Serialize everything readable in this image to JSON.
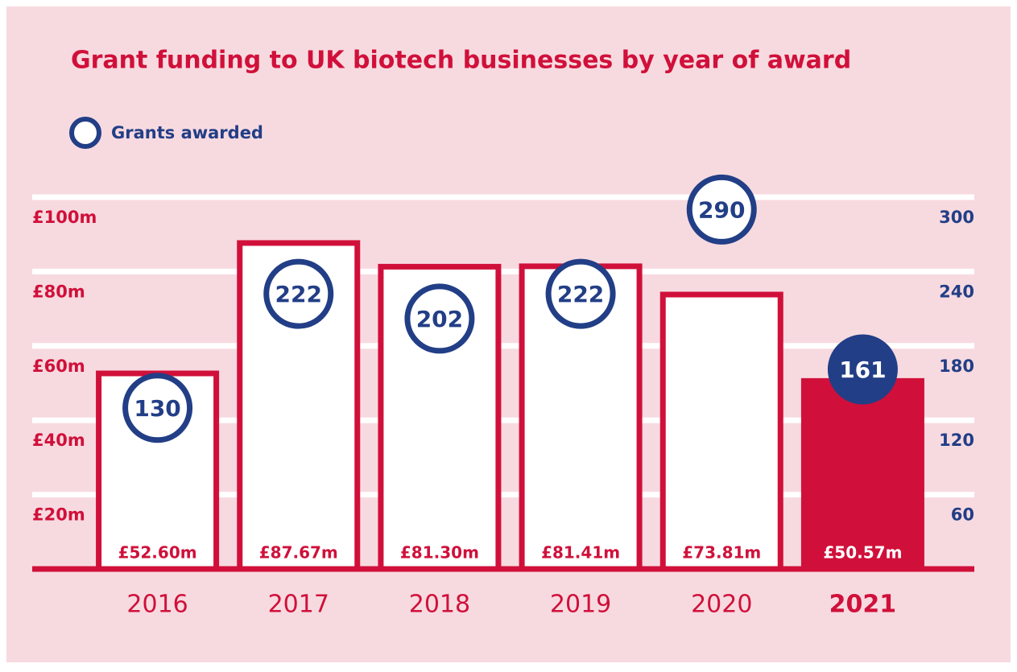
{
  "chart_data": {
    "type": "bar",
    "title": "Grant funding to UK biotech businesses by year of award",
    "categories": [
      "2016",
      "2017",
      "2018",
      "2019",
      "2020",
      "2021"
    ],
    "series": [
      {
        "color": "#d0103a",
        "values": [
          52.6,
          87.67,
          81.3,
          81.41,
          73.81,
          50.57
        ],
        "value_labels": [
          "£52.60m",
          "£87.67m",
          "£81.30m",
          "£81.41m",
          "£73.81m",
          "£50.57m"
        ]
      },
      {
        "name": "Grants awarded",
        "type": "scatter",
        "axis": "y2",
        "color": "#223e86",
        "values": [
          130,
          222,
          202,
          222,
          290,
          161
        ]
      }
    ],
    "highlight": 5,
    "ylim": [
      0,
      100
    ],
    "yticks": [
      {
        "value": 20,
        "label": "£20m"
      },
      {
        "value": 40,
        "label": "£40m"
      },
      {
        "value": 60,
        "label": "£60m"
      },
      {
        "value": 80,
        "label": "£80m"
      },
      {
        "value": 100,
        "label": "£100m"
      }
    ],
    "y2lim": [
      0,
      300
    ],
    "y2ticks": [
      60,
      120,
      180,
      240,
      300
    ],
    "grid": true
  }
}
